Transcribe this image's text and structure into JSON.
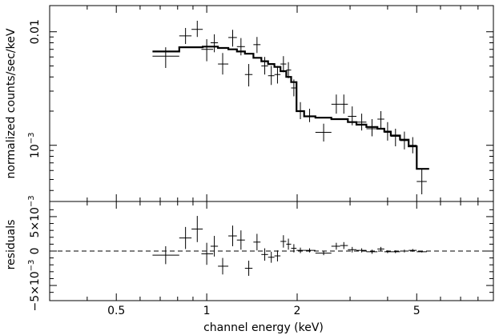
{
  "chart_data": {
    "type": "scatter",
    "xlabel": "channel energy (keV)",
    "x_scale": "log",
    "xlim": [
      0.3,
      9.0
    ],
    "x_ticks": [
      {
        "value": 0.5,
        "label": "0.5"
      },
      {
        "value": 1,
        "label": "1"
      },
      {
        "value": 2,
        "label": "2"
      },
      {
        "value": 5,
        "label": "5"
      }
    ],
    "top_panel": {
      "ylabel": "normalized counts/sec/keV",
      "y_scale": "log",
      "ylim": [
        0.00032,
        0.017
      ],
      "y_ticks": [
        {
          "value": 0.01,
          "label": "0.01"
        },
        {
          "value": 0.001,
          "label": "10",
          "exp": "−3"
        }
      ],
      "data": [
        {
          "x": 0.73,
          "xlo": 0.66,
          "xhi": 0.81,
          "y": 0.0061,
          "ylo": 0.0048,
          "yhi": 0.0073
        },
        {
          "x": 0.85,
          "xlo": 0.81,
          "xhi": 0.89,
          "y": 0.0092,
          "ylo": 0.0078,
          "yhi": 0.0108
        },
        {
          "x": 0.93,
          "xlo": 0.89,
          "xhi": 0.97,
          "y": 0.0105,
          "ylo": 0.009,
          "yhi": 0.0125
        },
        {
          "x": 1.0,
          "xlo": 0.96,
          "xhi": 1.05,
          "y": 0.007,
          "ylo": 0.0055,
          "yhi": 0.0086
        },
        {
          "x": 1.06,
          "xlo": 1.03,
          "xhi": 1.09,
          "y": 0.008,
          "ylo": 0.0066,
          "yhi": 0.0095
        },
        {
          "x": 1.13,
          "xlo": 1.09,
          "xhi": 1.18,
          "y": 0.0052,
          "ylo": 0.0042,
          "yhi": 0.0065
        },
        {
          "x": 1.22,
          "xlo": 1.18,
          "xhi": 1.26,
          "y": 0.0089,
          "ylo": 0.0074,
          "yhi": 0.0104
        },
        {
          "x": 1.3,
          "xlo": 1.26,
          "xhi": 1.34,
          "y": 0.0074,
          "ylo": 0.0062,
          "yhi": 0.0088
        },
        {
          "x": 1.38,
          "xlo": 1.34,
          "xhi": 1.42,
          "y": 0.0042,
          "ylo": 0.0033,
          "yhi": 0.0052
        },
        {
          "x": 1.47,
          "xlo": 1.43,
          "xhi": 1.51,
          "y": 0.0077,
          "ylo": 0.0065,
          "yhi": 0.009
        },
        {
          "x": 1.56,
          "xlo": 1.52,
          "xhi": 1.6,
          "y": 0.005,
          "ylo": 0.0042,
          "yhi": 0.006
        },
        {
          "x": 1.64,
          "xlo": 1.6,
          "xhi": 1.68,
          "y": 0.0041,
          "ylo": 0.0034,
          "yhi": 0.005
        },
        {
          "x": 1.72,
          "xlo": 1.68,
          "xhi": 1.76,
          "y": 0.0042,
          "ylo": 0.0035,
          "yhi": 0.005
        },
        {
          "x": 1.8,
          "xlo": 1.76,
          "xhi": 1.84,
          "y": 0.0052,
          "ylo": 0.0044,
          "yhi": 0.0061
        },
        {
          "x": 1.87,
          "xlo": 1.84,
          "xhi": 1.91,
          "y": 0.0046,
          "ylo": 0.0039,
          "yhi": 0.0054
        },
        {
          "x": 1.95,
          "xlo": 1.91,
          "xhi": 1.99,
          "y": 0.0032,
          "ylo": 0.0027,
          "yhi": 0.0038
        },
        {
          "x": 2.05,
          "xlo": 1.99,
          "xhi": 2.11,
          "y": 0.002,
          "ylo": 0.0017,
          "yhi": 0.0024
        },
        {
          "x": 2.2,
          "xlo": 2.11,
          "xhi": 2.3,
          "y": 0.0018,
          "ylo": 0.0016,
          "yhi": 0.0021
        },
        {
          "x": 2.45,
          "xlo": 2.3,
          "xhi": 2.6,
          "y": 0.0013,
          "ylo": 0.00108,
          "yhi": 0.00155
        },
        {
          "x": 2.7,
          "xlo": 2.6,
          "xhi": 2.78,
          "y": 0.0023,
          "ylo": 0.0019,
          "yhi": 0.0028
        },
        {
          "x": 2.86,
          "xlo": 2.78,
          "xhi": 2.95,
          "y": 0.0023,
          "ylo": 0.0019,
          "yhi": 0.0028
        },
        {
          "x": 3.05,
          "xlo": 2.95,
          "xhi": 3.15,
          "y": 0.0018,
          "ylo": 0.0015,
          "yhi": 0.0022
        },
        {
          "x": 3.28,
          "xlo": 3.15,
          "xhi": 3.4,
          "y": 0.0016,
          "ylo": 0.00135,
          "yhi": 0.0019
        },
        {
          "x": 3.55,
          "xlo": 3.4,
          "xhi": 3.7,
          "y": 0.0014,
          "ylo": 0.0012,
          "yhi": 0.0017
        },
        {
          "x": 3.8,
          "xlo": 3.7,
          "xhi": 3.9,
          "y": 0.0017,
          "ylo": 0.0014,
          "yhi": 0.002
        },
        {
          "x": 4.0,
          "xlo": 3.9,
          "xhi": 4.1,
          "y": 0.0013,
          "ylo": 0.0011,
          "yhi": 0.0016
        },
        {
          "x": 4.25,
          "xlo": 4.1,
          "xhi": 4.4,
          "y": 0.0012,
          "ylo": 0.00098,
          "yhi": 0.0014
        },
        {
          "x": 4.55,
          "xlo": 4.4,
          "xhi": 4.7,
          "y": 0.0011,
          "ylo": 0.00092,
          "yhi": 0.00132
        },
        {
          "x": 4.85,
          "xlo": 4.7,
          "xhi": 5.0,
          "y": 0.001,
          "ylo": 0.00085,
          "yhi": 0.00118
        },
        {
          "x": 5.2,
          "xlo": 5.0,
          "xhi": 5.4,
          "y": 0.00048,
          "ylo": 0.00037,
          "yhi": 0.00062
        }
      ],
      "model": [
        {
          "xlo": 0.66,
          "xhi": 0.81,
          "y": 0.0067
        },
        {
          "xlo": 0.81,
          "xhi": 0.97,
          "y": 0.0073
        },
        {
          "xlo": 0.97,
          "xhi": 1.09,
          "y": 0.0074
        },
        {
          "xlo": 1.09,
          "xhi": 1.18,
          "y": 0.0072
        },
        {
          "xlo": 1.18,
          "xhi": 1.26,
          "y": 0.007
        },
        {
          "xlo": 1.26,
          "xhi": 1.34,
          "y": 0.0067
        },
        {
          "xlo": 1.34,
          "xhi": 1.43,
          "y": 0.0064
        },
        {
          "xlo": 1.43,
          "xhi": 1.52,
          "y": 0.0059
        },
        {
          "xlo": 1.52,
          "xhi": 1.6,
          "y": 0.0055
        },
        {
          "xlo": 1.6,
          "xhi": 1.68,
          "y": 0.0052
        },
        {
          "xlo": 1.68,
          "xhi": 1.76,
          "y": 0.0049
        },
        {
          "xlo": 1.76,
          "xhi": 1.84,
          "y": 0.0045
        },
        {
          "xlo": 1.84,
          "xhi": 1.91,
          "y": 0.004
        },
        {
          "xlo": 1.91,
          "xhi": 1.99,
          "y": 0.0036
        },
        {
          "xlo": 1.99,
          "xhi": 2.11,
          "y": 0.002
        },
        {
          "xlo": 2.11,
          "xhi": 2.3,
          "y": 0.0018
        },
        {
          "xlo": 2.3,
          "xhi": 2.6,
          "y": 0.00175
        },
        {
          "xlo": 2.6,
          "xhi": 2.95,
          "y": 0.0017
        },
        {
          "xlo": 2.95,
          "xhi": 3.15,
          "y": 0.0016
        },
        {
          "xlo": 3.15,
          "xhi": 3.4,
          "y": 0.00152
        },
        {
          "xlo": 3.4,
          "xhi": 3.7,
          "y": 0.00145
        },
        {
          "xlo": 3.7,
          "xhi": 3.9,
          "y": 0.0014
        },
        {
          "xlo": 3.9,
          "xhi": 4.1,
          "y": 0.00132
        },
        {
          "xlo": 4.1,
          "xhi": 4.4,
          "y": 0.00122
        },
        {
          "xlo": 4.4,
          "xhi": 4.7,
          "y": 0.00112
        },
        {
          "xlo": 4.7,
          "xhi": 5.0,
          "y": 0.00098
        },
        {
          "xlo": 5.0,
          "xhi": 5.5,
          "y": 0.00062
        }
      ]
    },
    "bottom_panel": {
      "ylabel": "residuals",
      "y_scale": "linear",
      "ylim": [
        -0.0072,
        0.0072
      ],
      "zero_line": true,
      "y_ticks": [
        {
          "value": 0.005,
          "label": "5×10",
          "exp": "−3"
        },
        {
          "value": 0,
          "label": "0"
        },
        {
          "value": -0.005,
          "label": "−5×10",
          "exp": "−3"
        }
      ],
      "data": [
        {
          "x": 0.73,
          "xlo": 0.66,
          "xhi": 0.81,
          "y": -0.0006,
          "err": 0.0013
        },
        {
          "x": 0.85,
          "xlo": 0.81,
          "xhi": 0.89,
          "y": 0.0019,
          "err": 0.0016
        },
        {
          "x": 0.93,
          "xlo": 0.89,
          "xhi": 0.97,
          "y": 0.0032,
          "err": 0.0019
        },
        {
          "x": 1.0,
          "xlo": 0.96,
          "xhi": 1.05,
          "y": -0.0004,
          "err": 0.0016
        },
        {
          "x": 1.06,
          "xlo": 1.03,
          "xhi": 1.09,
          "y": 0.0007,
          "err": 0.0015
        },
        {
          "x": 1.13,
          "xlo": 1.09,
          "xhi": 1.18,
          "y": -0.0022,
          "err": 0.0012
        },
        {
          "x": 1.22,
          "xlo": 1.18,
          "xhi": 1.26,
          "y": 0.0022,
          "err": 0.0015
        },
        {
          "x": 1.3,
          "xlo": 1.26,
          "xhi": 1.34,
          "y": 0.0016,
          "err": 0.0014
        },
        {
          "x": 1.38,
          "xlo": 1.34,
          "xhi": 1.42,
          "y": -0.0025,
          "err": 0.0011
        },
        {
          "x": 1.47,
          "xlo": 1.43,
          "xhi": 1.51,
          "y": 0.0013,
          "err": 0.0012
        },
        {
          "x": 1.56,
          "xlo": 1.52,
          "xhi": 1.6,
          "y": -0.0005,
          "err": 0.0009
        },
        {
          "x": 1.64,
          "xlo": 1.6,
          "xhi": 1.68,
          "y": -0.0009,
          "err": 0.0008
        },
        {
          "x": 1.72,
          "xlo": 1.68,
          "xhi": 1.76,
          "y": -0.0007,
          "err": 0.0008
        },
        {
          "x": 1.8,
          "xlo": 1.76,
          "xhi": 1.84,
          "y": 0.0014,
          "err": 0.0009
        },
        {
          "x": 1.87,
          "xlo": 1.84,
          "xhi": 1.91,
          "y": 0.001,
          "err": 0.0008
        },
        {
          "x": 1.95,
          "xlo": 1.91,
          "xhi": 1.99,
          "y": 0.0004,
          "err": 0.0006
        },
        {
          "x": 2.05,
          "xlo": 1.99,
          "xhi": 2.11,
          "y": 0.0001,
          "err": 0.0004
        },
        {
          "x": 2.2,
          "xlo": 2.11,
          "xhi": 2.3,
          "y": 0.0001,
          "err": 0.0003
        },
        {
          "x": 2.45,
          "xlo": 2.3,
          "xhi": 2.6,
          "y": -0.0003,
          "err": 0.0003
        },
        {
          "x": 2.7,
          "xlo": 2.6,
          "xhi": 2.78,
          "y": 0.0007,
          "err": 0.0005
        },
        {
          "x": 2.86,
          "xlo": 2.78,
          "xhi": 2.95,
          "y": 0.0008,
          "err": 0.0005
        },
        {
          "x": 3.05,
          "xlo": 2.95,
          "xhi": 3.15,
          "y": 0.0002,
          "err": 0.0004
        },
        {
          "x": 3.28,
          "xlo": 3.15,
          "xhi": 3.4,
          "y": 0.0001,
          "err": 0.0003
        },
        {
          "x": 3.55,
          "xlo": 3.4,
          "xhi": 3.7,
          "y": -0.0001,
          "err": 0.0003
        },
        {
          "x": 3.8,
          "xlo": 3.7,
          "xhi": 3.9,
          "y": 0.0003,
          "err": 0.0003
        },
        {
          "x": 4.0,
          "xlo": 3.9,
          "xhi": 4.1,
          "y": -0.0001,
          "err": 0.0002
        },
        {
          "x": 4.25,
          "xlo": 4.1,
          "xhi": 4.4,
          "y": -0.0001,
          "err": 0.0002
        },
        {
          "x": 4.55,
          "xlo": 4.4,
          "xhi": 4.7,
          "y": 0.0,
          "err": 0.0002
        },
        {
          "x": 4.85,
          "xlo": 4.7,
          "xhi": 5.0,
          "y": 0.0001,
          "err": 0.0002
        },
        {
          "x": 5.2,
          "xlo": 5.0,
          "xhi": 5.4,
          "y": -0.0001,
          "err": 0.0001
        }
      ]
    }
  }
}
